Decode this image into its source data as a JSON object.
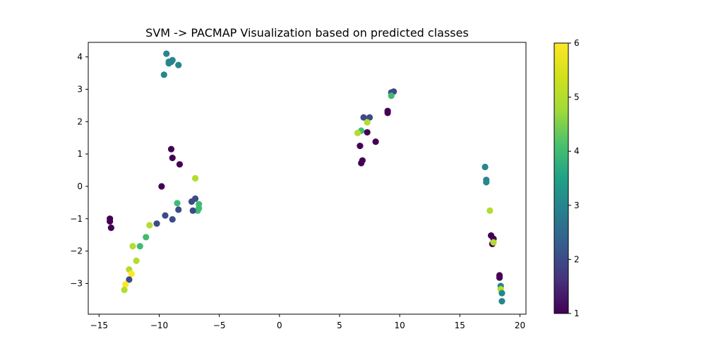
{
  "chart_data": {
    "type": "scatter",
    "title": "SVM -> PACMAP Visualization based on predicted classes",
    "xlabel": "",
    "ylabel": "",
    "xlim": [
      -15.9,
      20.5
    ],
    "ylim": [
      -3.95,
      4.45
    ],
    "xticks": [
      -15,
      -10,
      -5,
      0,
      5,
      10,
      15,
      20
    ],
    "yticks": [
      -3,
      -2,
      -1,
      0,
      1,
      2,
      3,
      4
    ],
    "grid": false,
    "colorbar": {
      "min": 1,
      "max": 6,
      "ticks": [
        1,
        2,
        3,
        4,
        5,
        6
      ],
      "colormap": "viridis"
    },
    "points": [
      {
        "x": -9.4,
        "y": 4.1,
        "c": 3
      },
      {
        "x": -8.9,
        "y": 3.9,
        "c": 3
      },
      {
        "x": -9.2,
        "y": 3.85,
        "c": 3
      },
      {
        "x": -9.0,
        "y": 3.85,
        "c": 3
      },
      {
        "x": -9.2,
        "y": 3.8,
        "c": 3
      },
      {
        "x": -8.4,
        "y": 3.75,
        "c": 3
      },
      {
        "x": -9.6,
        "y": 3.45,
        "c": 3
      },
      {
        "x": -9.0,
        "y": 1.15,
        "c": 1
      },
      {
        "x": -8.9,
        "y": 0.88,
        "c": 1
      },
      {
        "x": -8.3,
        "y": 0.68,
        "c": 1
      },
      {
        "x": -9.8,
        "y": 0.0,
        "c": 1
      },
      {
        "x": -7.0,
        "y": 0.25,
        "c": 5
      },
      {
        "x": -7.0,
        "y": -0.38,
        "c": 2
      },
      {
        "x": -7.3,
        "y": -0.47,
        "c": 2
      },
      {
        "x": -8.5,
        "y": -0.52,
        "c": 4
      },
      {
        "x": -6.7,
        "y": -0.55,
        "c": 4
      },
      {
        "x": -6.7,
        "y": -0.68,
        "c": 4
      },
      {
        "x": -8.4,
        "y": -0.72,
        "c": 2
      },
      {
        "x": -6.8,
        "y": -0.75,
        "c": 4
      },
      {
        "x": -7.2,
        "y": -0.75,
        "c": 2
      },
      {
        "x": -9.5,
        "y": -0.9,
        "c": 2
      },
      {
        "x": -8.9,
        "y": -1.02,
        "c": 2
      },
      {
        "x": -10.2,
        "y": -1.15,
        "c": 2
      },
      {
        "x": -10.8,
        "y": -1.2,
        "c": 5
      },
      {
        "x": -11.1,
        "y": -1.57,
        "c": 4
      },
      {
        "x": -11.6,
        "y": -1.85,
        "c": 4
      },
      {
        "x": -12.2,
        "y": -1.85,
        "c": 5
      },
      {
        "x": -11.9,
        "y": -2.3,
        "c": 5
      },
      {
        "x": -12.5,
        "y": -2.57,
        "c": 5
      },
      {
        "x": -12.3,
        "y": -2.7,
        "c": 6
      },
      {
        "x": -12.5,
        "y": -2.88,
        "c": 2
      },
      {
        "x": -12.8,
        "y": -3.03,
        "c": 6
      },
      {
        "x": -12.9,
        "y": -3.2,
        "c": 5
      },
      {
        "x": -14.1,
        "y": -1.0,
        "c": 1
      },
      {
        "x": -14.1,
        "y": -1.08,
        "c": 1
      },
      {
        "x": -14.0,
        "y": -1.28,
        "c": 1
      },
      {
        "x": 9.5,
        "y": 2.93,
        "c": 2
      },
      {
        "x": 9.3,
        "y": 2.9,
        "c": 2
      },
      {
        "x": 9.3,
        "y": 2.8,
        "c": 4
      },
      {
        "x": 9.0,
        "y": 2.33,
        "c": 1
      },
      {
        "x": 9.0,
        "y": 2.27,
        "c": 1
      },
      {
        "x": 7.0,
        "y": 2.13,
        "c": 2
      },
      {
        "x": 7.5,
        "y": 2.13,
        "c": 2
      },
      {
        "x": 7.3,
        "y": 1.98,
        "c": 5
      },
      {
        "x": 6.8,
        "y": 1.72,
        "c": 4
      },
      {
        "x": 7.3,
        "y": 1.67,
        "c": 1
      },
      {
        "x": 6.5,
        "y": 1.65,
        "c": 5
      },
      {
        "x": 8.0,
        "y": 1.38,
        "c": 1
      },
      {
        "x": 6.7,
        "y": 1.25,
        "c": 1
      },
      {
        "x": 6.9,
        "y": 0.8,
        "c": 1
      },
      {
        "x": 6.8,
        "y": 0.72,
        "c": 1
      },
      {
        "x": 17.1,
        "y": 0.6,
        "c": 3
      },
      {
        "x": 17.2,
        "y": 0.2,
        "c": 3
      },
      {
        "x": 17.2,
        "y": 0.13,
        "c": 3
      },
      {
        "x": 17.5,
        "y": -0.75,
        "c": 5
      },
      {
        "x": 17.6,
        "y": -1.52,
        "c": 1
      },
      {
        "x": 17.8,
        "y": -1.62,
        "c": 1
      },
      {
        "x": 17.7,
        "y": -1.78,
        "c": 1
      },
      {
        "x": 17.8,
        "y": -1.73,
        "c": 5
      },
      {
        "x": 18.3,
        "y": -2.75,
        "c": 1
      },
      {
        "x": 18.3,
        "y": -2.82,
        "c": 1
      },
      {
        "x": 18.4,
        "y": -3.08,
        "c": 3
      },
      {
        "x": 18.4,
        "y": -3.18,
        "c": 5
      },
      {
        "x": 18.5,
        "y": -3.3,
        "c": 3
      },
      {
        "x": 18.5,
        "y": -3.55,
        "c": 3
      }
    ]
  }
}
